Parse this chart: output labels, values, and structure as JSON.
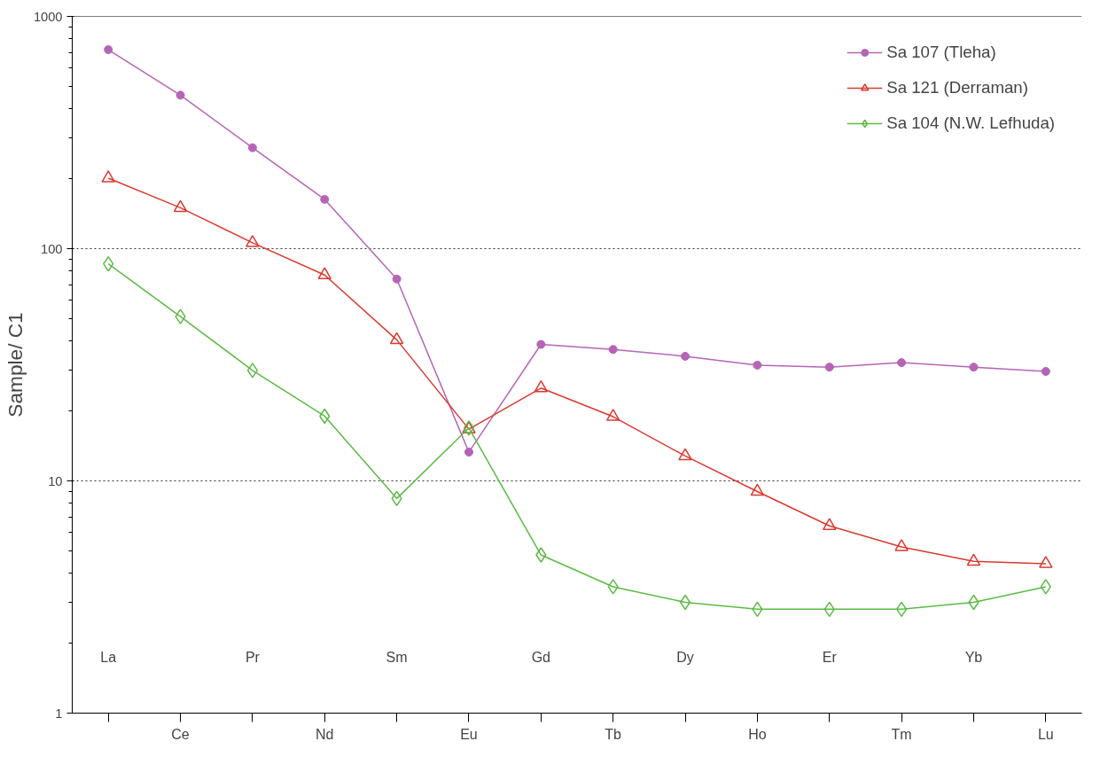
{
  "chart_data": {
    "type": "line",
    "ylabel": "Sample/ C1",
    "categories": [
      "La",
      "Ce",
      "Pr",
      "Nd",
      "Sm",
      "Eu",
      "Gd",
      "Tb",
      "Dy",
      "Ho",
      "Er",
      "Tm",
      "Yb",
      "Lu"
    ],
    "series": [
      {
        "name": "Sa 107 (Tleha)",
        "color": "#b565b5",
        "marker": "circle",
        "values": [
          719,
          458,
          272,
          163,
          74,
          13.3,
          38.7,
          36.8,
          34.4,
          31.5,
          30.9,
          32.3,
          30.9,
          29.6
        ]
      },
      {
        "name": "Sa 121 (Derraman)",
        "color": "#d93a2e",
        "marker": "triangle",
        "values": [
          201,
          150,
          106,
          77,
          40.5,
          16.7,
          25.1,
          18.9,
          12.8,
          9.0,
          6.4,
          5.2,
          4.5,
          4.4
        ]
      },
      {
        "name": "Sa 104 (N.W. Lefhuda)",
        "color": "#5cba45",
        "marker": "diamond",
        "values": [
          86,
          51,
          29.9,
          19,
          8.4,
          16.9,
          4.8,
          3.5,
          3.0,
          2.8,
          2.8,
          2.8,
          3.0,
          3.5
        ]
      }
    ],
    "log": true,
    "ylim": [
      1,
      1000
    ],
    "yticks": [
      1,
      10,
      100,
      1000
    ],
    "grid": "y",
    "legend": "top right"
  }
}
